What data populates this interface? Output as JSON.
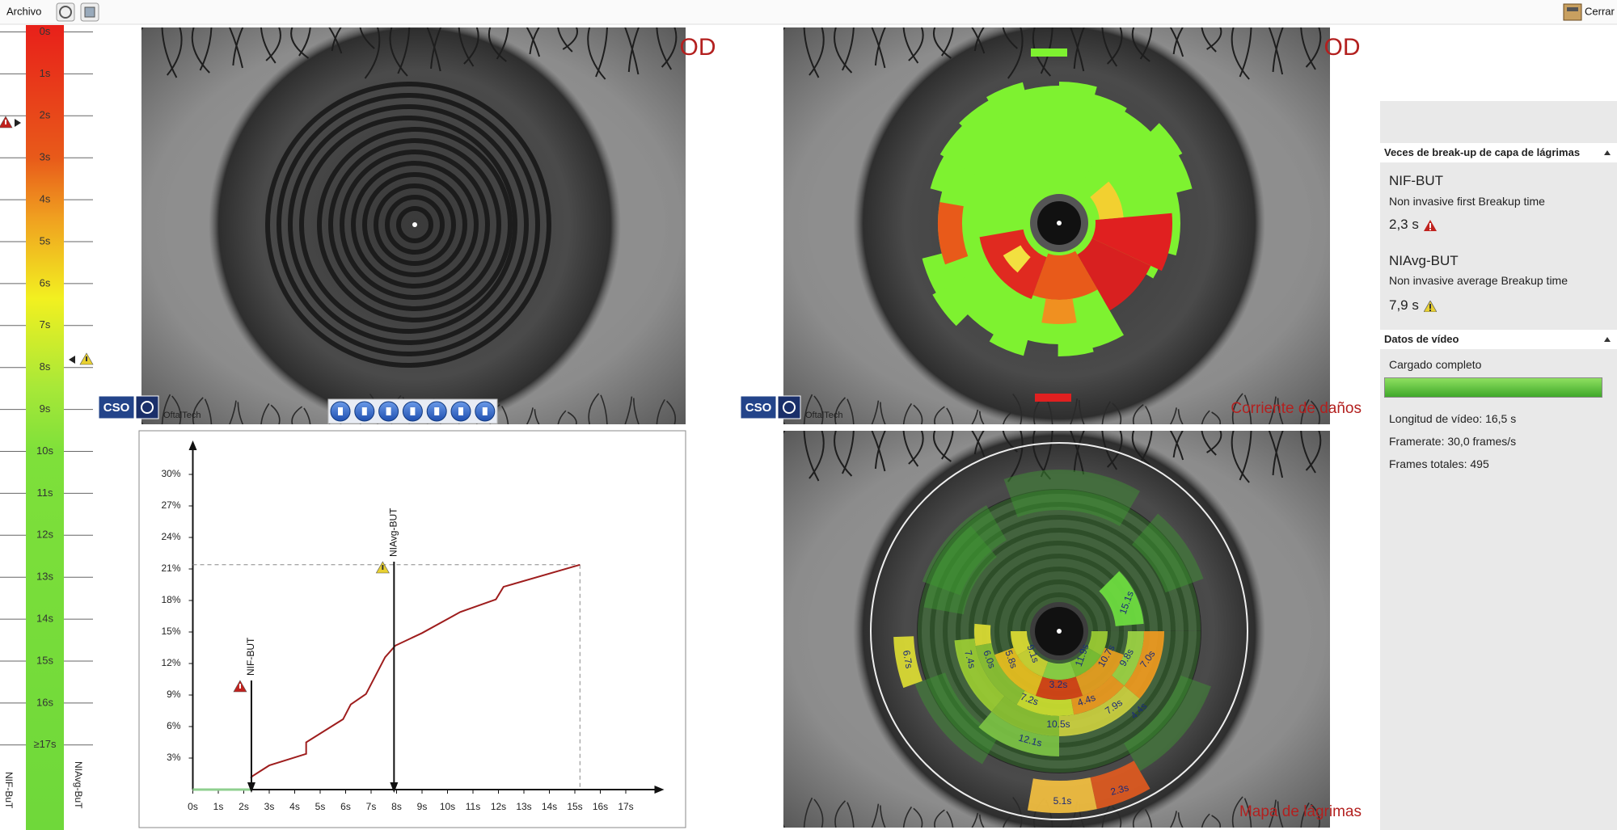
{
  "toolbar": {
    "menu": "Archivo",
    "close": "Cerrar"
  },
  "scale": {
    "labels": [
      "0s",
      "1s",
      "2s",
      "3s",
      "4s",
      "5s",
      "6s",
      "7s",
      "8s",
      "9s",
      "10s",
      "11s",
      "12s",
      "13s",
      "14s",
      "15s",
      "16s",
      "≥17s"
    ],
    "left_caption": "NIF-BuT",
    "right_caption": "NIAvg-BuT"
  },
  "video": {
    "eye_label": "OD",
    "logo": "CSO",
    "brand": "OftalTech"
  },
  "damage_map": {
    "eye_label": "OD",
    "logo": "CSO",
    "brand": "OftalTech",
    "caption": "Corriente de daños"
  },
  "tear_map": {
    "caption": "Mapa de lágrimas",
    "sector_labels": [
      "15.1s",
      "9.1s",
      "11.9s",
      "10.7s",
      "9.8s",
      "7.0s",
      "6.7s",
      "7.4s",
      "6.0s",
      "5.8s",
      "3.2s",
      "7.2s",
      "4.4s",
      "7.9s",
      "4.4s",
      "10.5s",
      "12.1s",
      "5.1s",
      "2.3s"
    ]
  },
  "chart_data": {
    "type": "line",
    "xlim": [
      0,
      18
    ],
    "ylim": [
      0,
      32
    ],
    "xticks": [
      {
        "value": 0,
        "label": "0s"
      },
      {
        "value": 1,
        "label": "1s"
      },
      {
        "value": 2,
        "label": "2s"
      },
      {
        "value": 3,
        "label": "3s"
      },
      {
        "value": 4,
        "label": "4s"
      },
      {
        "value": 5,
        "label": "5s"
      },
      {
        "value": 6,
        "label": "6s"
      },
      {
        "value": 7,
        "label": "7s"
      },
      {
        "value": 8,
        "label": "8s"
      },
      {
        "value": 9,
        "label": "9s"
      },
      {
        "value": 10,
        "label": "10s"
      },
      {
        "value": 11,
        "label": "11s"
      },
      {
        "value": 12,
        "label": "12s"
      },
      {
        "value": 13,
        "label": "13s"
      },
      {
        "value": 14,
        "label": "14s"
      },
      {
        "value": 15,
        "label": "15s"
      },
      {
        "value": 16,
        "label": "16s"
      },
      {
        "value": 17,
        "label": "17s"
      }
    ],
    "yticks": [
      {
        "value": 3,
        "label": "3%"
      },
      {
        "value": 6,
        "label": "6%"
      },
      {
        "value": 9,
        "label": "9%"
      },
      {
        "value": 12,
        "label": "12%"
      },
      {
        "value": 15,
        "label": "15%"
      },
      {
        "value": 18,
        "label": "18%"
      },
      {
        "value": 21,
        "label": "21%"
      },
      {
        "value": 24,
        "label": "24%"
      },
      {
        "value": 27,
        "label": "27%"
      },
      {
        "value": 30,
        "label": "30%"
      }
    ],
    "series": [
      {
        "color": "#8fcf8f",
        "x": [
          0,
          2.3
        ],
        "values": [
          0,
          0
        ]
      },
      {
        "color": "#9e1d1d",
        "x": [
          2.27,
          2.35,
          3.0,
          4.45,
          4.45,
          5.9,
          6.2,
          6.8,
          7.55,
          7.95,
          9.0,
          10.5,
          11.9,
          12.2,
          15.2
        ],
        "values": [
          1.1,
          1.3,
          2.3,
          3.4,
          4.5,
          6.7,
          8.1,
          9.1,
          12.6,
          13.7,
          14.9,
          16.9,
          18.1,
          19.3,
          21.4
        ]
      }
    ],
    "annotations": [
      {
        "x": 2.3,
        "label": "NIF-BUT"
      },
      {
        "x": 7.9,
        "label": "NIAvg-BUT"
      }
    ]
  },
  "panel": {
    "sections": [
      {
        "title": "Veces de break-up de capa de lágrimas",
        "items": [
          {
            "name": "NIF-BUT",
            "description": "Non invasive first Breakup time",
            "value": "2,3 s"
          },
          {
            "name": "NIAvg-BUT",
            "description": "Non invasive average Breakup time",
            "value": "7,9 s"
          }
        ]
      },
      {
        "title": "Datos de vídeo",
        "status": "Cargado completo",
        "details": [
          "Longitud de vídeo: 16,5 s",
          "Framerate: 30,0 frames/s",
          "Frames totales: 495"
        ]
      }
    ]
  }
}
